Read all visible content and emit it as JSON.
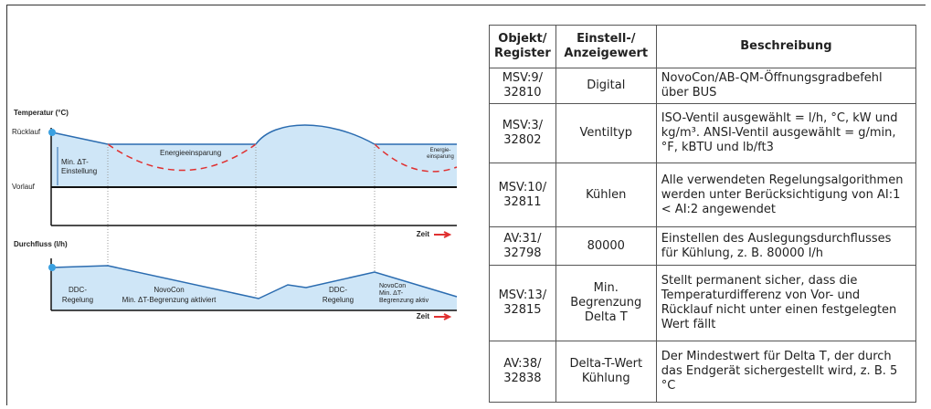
{
  "diagram": {
    "temp_title": "Temperatur (°C)",
    "return_label": "Rücklauf",
    "supply_label": "Vorlauf",
    "min_dt_label": [
      "Min. ΔT-",
      "Einstellung"
    ],
    "saving_1": "Energieeinsparung",
    "saving_2": [
      "Energie-",
      "einsparung"
    ],
    "time_1": "Zeit",
    "flow_title": "Durchfluss (l/h)",
    "phase_1": [
      "DDC-",
      "Regelung"
    ],
    "phase_2": [
      "NovoCon",
      "Min. ΔT-Begrenzung aktiviert"
    ],
    "phase_3": [
      "DDC-",
      "Regelung"
    ],
    "phase_4": [
      "NovoCon",
      "Min. ΔT-",
      "Begrenzung aktiv"
    ],
    "time_2": "Zeit"
  },
  "table": {
    "header": [
      "Objekt/ Register",
      "Einstell-/ Anzeigewert",
      "Beschreibung"
    ],
    "rows": [
      [
        "MSV:9/ 32810",
        "Digital",
        "NovoCon/AB-QM-Öffnungsgradbefehl über BUS"
      ],
      [
        "MSV:3/ 32802",
        "Ventiltyp",
        "ISO-Ventil ausgewählt = l/h, °C, kW und kg/m³. ANSI-Ventil ausgewählt = g/min, °F, kBTU und lb/ft3"
      ],
      [
        "MSV:10/ 32811",
        "Kühlen",
        "Alle verwendeten Regelungsalgorithmen werden unter Berücksichtigung von AI:1 < AI:2 angewendet"
      ],
      [
        "AV:31/ 32798",
        "80000",
        "Einstellen des Auslegungsdurchflusses für Kühlung, z. B. 80000 l/h"
      ],
      [
        "MSV:13/ 32815",
        "Min. Begrenzung Delta T",
        "Stellt permanent sicher, dass die Temperaturdifferenz von Vor- und Rücklauf nicht unter einen festgelegten Wert fällt"
      ],
      [
        "AV:38/ 32838",
        "Delta-T-Wert Kühlung",
        "Der Mindestwert für Delta T, der durch das Endgerät sichergestellt wird, z. B. 5 °C"
      ]
    ]
  }
}
